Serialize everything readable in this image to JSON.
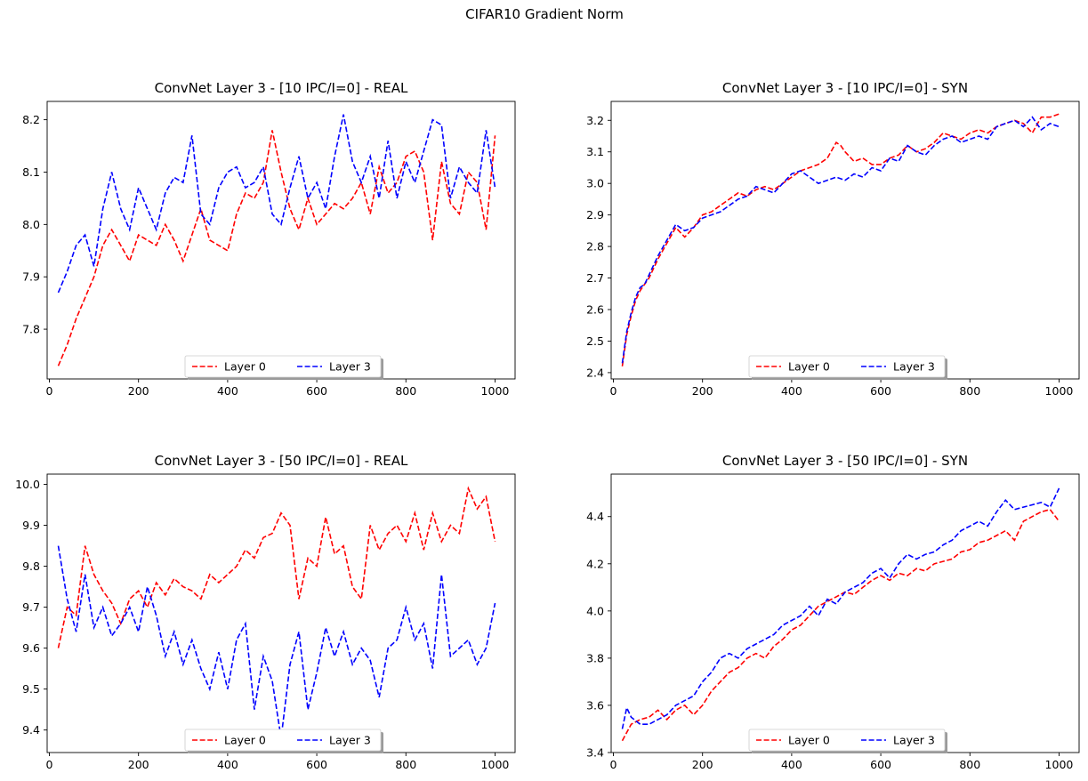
{
  "figure": {
    "suptitle": "CIFAR10 Gradient Norm"
  },
  "colors": {
    "layer0": "#ff0000",
    "layer3": "#0000ff"
  },
  "chart_data": [
    {
      "type": "line",
      "title": "ConvNet Layer 3 - [10 IPC/I=0] - REAL",
      "xlabel": "",
      "ylabel": "",
      "xlim": [
        -5,
        1045
      ],
      "ylim": [
        7.705,
        8.235
      ],
      "xticks": [
        0,
        200,
        400,
        600,
        800,
        1000
      ],
      "yticks": [
        7.8,
        7.9,
        8.0,
        8.1,
        8.2
      ],
      "ytick_labels": [
        "7.8",
        "7.9",
        "8.0",
        "8.1",
        "8.2"
      ],
      "legend": {
        "placement": "bottom-center",
        "entries": [
          "Layer 0",
          "Layer 3"
        ]
      },
      "series": [
        {
          "name": "Layer 0",
          "color": "#ff0000",
          "x": [
            20,
            40,
            60,
            80,
            100,
            120,
            140,
            160,
            180,
            200,
            220,
            240,
            260,
            280,
            300,
            320,
            340,
            360,
            380,
            400,
            420,
            440,
            460,
            480,
            500,
            520,
            540,
            560,
            580,
            600,
            620,
            640,
            660,
            680,
            700,
            720,
            740,
            760,
            780,
            800,
            820,
            840,
            860,
            880,
            900,
            920,
            940,
            960,
            980,
            1000
          ],
          "y": [
            7.73,
            7.77,
            7.82,
            7.86,
            7.9,
            7.96,
            7.99,
            7.96,
            7.93,
            7.98,
            7.97,
            7.96,
            8.0,
            7.97,
            7.93,
            7.98,
            8.03,
            7.97,
            7.96,
            7.95,
            8.02,
            8.06,
            8.05,
            8.08,
            8.18,
            8.1,
            8.03,
            7.99,
            8.05,
            8.0,
            8.02,
            8.04,
            8.03,
            8.05,
            8.08,
            8.02,
            8.11,
            8.06,
            8.08,
            8.13,
            8.14,
            8.1,
            7.97,
            8.12,
            8.04,
            8.02,
            8.1,
            8.08,
            7.99,
            8.17
          ]
        },
        {
          "name": "Layer 3",
          "color": "#0000ff",
          "x": [
            20,
            40,
            60,
            80,
            100,
            120,
            140,
            160,
            180,
            200,
            220,
            240,
            260,
            280,
            300,
            320,
            340,
            360,
            380,
            400,
            420,
            440,
            460,
            480,
            500,
            520,
            540,
            560,
            580,
            600,
            620,
            640,
            660,
            680,
            700,
            720,
            740,
            760,
            780,
            800,
            820,
            840,
            860,
            880,
            900,
            920,
            940,
            960,
            980,
            1000
          ],
          "y": [
            7.87,
            7.91,
            7.96,
            7.98,
            7.92,
            8.03,
            8.1,
            8.03,
            7.99,
            8.07,
            8.03,
            7.99,
            8.06,
            8.09,
            8.08,
            8.17,
            8.02,
            8.0,
            8.07,
            8.1,
            8.11,
            8.07,
            8.08,
            8.11,
            8.02,
            8.0,
            8.07,
            8.13,
            8.05,
            8.08,
            8.03,
            8.13,
            8.21,
            8.12,
            8.08,
            8.13,
            8.05,
            8.16,
            8.05,
            8.12,
            8.08,
            8.14,
            8.2,
            8.19,
            8.05,
            8.11,
            8.08,
            8.06,
            8.18,
            8.07
          ]
        }
      ]
    },
    {
      "type": "line",
      "title": "ConvNet Layer 3 - [10 IPC/I=0] - SYN",
      "xlabel": "",
      "ylabel": "",
      "xlim": [
        -5,
        1045
      ],
      "ylim": [
        2.38,
        3.26
      ],
      "xticks": [
        0,
        200,
        400,
        600,
        800,
        1000
      ],
      "yticks": [
        2.4,
        2.5,
        2.6,
        2.7,
        2.8,
        2.9,
        3.0,
        3.1,
        3.2
      ],
      "ytick_labels": [
        "2.4",
        "2.5",
        "2.6",
        "2.7",
        "2.8",
        "2.9",
        "3.0",
        "3.1",
        "3.2"
      ],
      "legend": {
        "placement": "bottom-center",
        "entries": [
          "Layer 0",
          "Layer 3"
        ]
      },
      "series": [
        {
          "name": "Layer 0",
          "color": "#ff0000",
          "x": [
            20,
            30,
            40,
            50,
            60,
            70,
            80,
            100,
            120,
            140,
            160,
            180,
            200,
            220,
            240,
            260,
            280,
            300,
            320,
            340,
            360,
            380,
            400,
            420,
            440,
            460,
            480,
            500,
            510,
            520,
            540,
            560,
            580,
            600,
            620,
            640,
            660,
            680,
            700,
            720,
            740,
            760,
            780,
            800,
            820,
            840,
            860,
            880,
            900,
            920,
            940,
            960,
            980,
            1000
          ],
          "y": [
            2.42,
            2.52,
            2.58,
            2.63,
            2.66,
            2.68,
            2.7,
            2.76,
            2.81,
            2.86,
            2.83,
            2.86,
            2.9,
            2.91,
            2.93,
            2.95,
            2.97,
            2.96,
            2.98,
            2.99,
            2.98,
            3.0,
            3.02,
            3.04,
            3.05,
            3.06,
            3.08,
            3.13,
            3.12,
            3.1,
            3.07,
            3.08,
            3.06,
            3.06,
            3.08,
            3.09,
            3.12,
            3.1,
            3.11,
            3.13,
            3.16,
            3.15,
            3.14,
            3.16,
            3.17,
            3.16,
            3.18,
            3.19,
            3.2,
            3.19,
            3.16,
            3.21,
            3.21,
            3.22
          ]
        },
        {
          "name": "Layer 3",
          "color": "#0000ff",
          "x": [
            20,
            30,
            40,
            50,
            60,
            70,
            80,
            100,
            120,
            140,
            160,
            180,
            200,
            220,
            240,
            260,
            280,
            300,
            320,
            340,
            360,
            380,
            400,
            420,
            440,
            460,
            480,
            500,
            520,
            540,
            560,
            580,
            600,
            620,
            640,
            660,
            680,
            700,
            720,
            740,
            760,
            780,
            800,
            820,
            840,
            860,
            880,
            900,
            920,
            940,
            960,
            980,
            1000
          ],
          "y": [
            2.43,
            2.53,
            2.59,
            2.64,
            2.67,
            2.68,
            2.71,
            2.77,
            2.82,
            2.87,
            2.85,
            2.86,
            2.89,
            2.9,
            2.91,
            2.93,
            2.95,
            2.96,
            2.99,
            2.98,
            2.97,
            3.0,
            3.03,
            3.04,
            3.02,
            3.0,
            3.01,
            3.02,
            3.01,
            3.03,
            3.02,
            3.05,
            3.04,
            3.08,
            3.07,
            3.12,
            3.1,
            3.09,
            3.12,
            3.14,
            3.15,
            3.13,
            3.14,
            3.15,
            3.14,
            3.18,
            3.19,
            3.2,
            3.18,
            3.21,
            3.17,
            3.19,
            3.18
          ]
        }
      ]
    },
    {
      "type": "line",
      "title": "ConvNet Layer 3 - [50 IPC/I=0] - REAL",
      "xlabel": "",
      "ylabel": "",
      "xlim": [
        -5,
        1045
      ],
      "ylim": [
        9.345,
        10.025
      ],
      "xticks": [
        0,
        200,
        400,
        600,
        800,
        1000
      ],
      "yticks": [
        9.4,
        9.5,
        9.6,
        9.7,
        9.8,
        9.9,
        10.0
      ],
      "ytick_labels": [
        "9.4",
        "9.5",
        "9.6",
        "9.7",
        "9.8",
        "9.9",
        "10.0"
      ],
      "legend": {
        "placement": "bottom-center",
        "entries": [
          "Layer 0",
          "Layer 3"
        ]
      },
      "series": [
        {
          "name": "Layer 0",
          "color": "#ff0000",
          "x": [
            20,
            40,
            60,
            80,
            100,
            120,
            140,
            160,
            180,
            200,
            220,
            240,
            260,
            280,
            300,
            320,
            340,
            360,
            380,
            400,
            420,
            440,
            460,
            480,
            500,
            520,
            540,
            560,
            580,
            600,
            620,
            640,
            660,
            680,
            700,
            720,
            740,
            760,
            780,
            800,
            820,
            840,
            860,
            880,
            900,
            920,
            940,
            960,
            980,
            1000
          ],
          "y": [
            9.6,
            9.7,
            9.68,
            9.85,
            9.78,
            9.74,
            9.71,
            9.66,
            9.72,
            9.74,
            9.7,
            9.76,
            9.73,
            9.77,
            9.75,
            9.74,
            9.72,
            9.78,
            9.76,
            9.78,
            9.8,
            9.84,
            9.82,
            9.87,
            9.88,
            9.93,
            9.9,
            9.72,
            9.82,
            9.8,
            9.92,
            9.83,
            9.85,
            9.75,
            9.72,
            9.9,
            9.84,
            9.88,
            9.9,
            9.86,
            9.93,
            9.84,
            9.93,
            9.86,
            9.9,
            9.88,
            9.99,
            9.94,
            9.97,
            9.86
          ]
        },
        {
          "name": "Layer 3",
          "color": "#0000ff",
          "x": [
            20,
            40,
            60,
            80,
            100,
            120,
            140,
            160,
            180,
            200,
            220,
            240,
            260,
            280,
            300,
            320,
            340,
            360,
            380,
            400,
            420,
            440,
            460,
            480,
            500,
            520,
            540,
            560,
            580,
            600,
            620,
            640,
            660,
            680,
            700,
            720,
            740,
            760,
            780,
            800,
            820,
            840,
            860,
            880,
            900,
            920,
            940,
            960,
            980,
            1000
          ],
          "y": [
            9.85,
            9.72,
            9.64,
            9.78,
            9.65,
            9.7,
            9.63,
            9.66,
            9.7,
            9.64,
            9.75,
            9.68,
            9.58,
            9.64,
            9.56,
            9.62,
            9.55,
            9.5,
            9.59,
            9.5,
            9.62,
            9.66,
            9.45,
            9.58,
            9.52,
            9.38,
            9.56,
            9.64,
            9.45,
            9.54,
            9.65,
            9.58,
            9.64,
            9.56,
            9.6,
            9.57,
            9.48,
            9.6,
            9.62,
            9.7,
            9.62,
            9.66,
            9.55,
            9.78,
            9.58,
            9.6,
            9.62,
            9.56,
            9.6,
            9.71
          ]
        }
      ]
    },
    {
      "type": "line",
      "title": "ConvNet Layer 3 - [50 IPC/I=0] - SYN",
      "xlabel": "",
      "ylabel": "",
      "xlim": [
        -5,
        1045
      ],
      "ylim": [
        3.4,
        4.58
      ],
      "xticks": [
        0,
        200,
        400,
        600,
        800,
        1000
      ],
      "yticks": [
        3.4,
        3.6,
        3.8,
        4.0,
        4.2,
        4.4
      ],
      "ytick_labels": [
        "3.4",
        "3.6",
        "3.8",
        "4.0",
        "4.2",
        "4.4"
      ],
      "legend": {
        "placement": "bottom-center",
        "entries": [
          "Layer 0",
          "Layer 3"
        ]
      },
      "series": [
        {
          "name": "Layer 0",
          "color": "#ff0000",
          "x": [
            20,
            40,
            60,
            80,
            100,
            120,
            140,
            160,
            180,
            200,
            220,
            240,
            260,
            280,
            300,
            320,
            340,
            360,
            380,
            400,
            420,
            440,
            460,
            480,
            500,
            520,
            540,
            560,
            580,
            600,
            620,
            640,
            660,
            680,
            700,
            720,
            740,
            760,
            780,
            800,
            820,
            840,
            860,
            880,
            900,
            920,
            940,
            960,
            980,
            1000
          ],
          "y": [
            3.45,
            3.52,
            3.54,
            3.55,
            3.58,
            3.54,
            3.58,
            3.6,
            3.56,
            3.6,
            3.66,
            3.7,
            3.74,
            3.76,
            3.8,
            3.82,
            3.8,
            3.85,
            3.88,
            3.92,
            3.94,
            3.98,
            4.02,
            4.04,
            4.06,
            4.08,
            4.07,
            4.1,
            4.13,
            4.15,
            4.13,
            4.16,
            4.15,
            4.18,
            4.17,
            4.2,
            4.21,
            4.22,
            4.25,
            4.26,
            4.29,
            4.3,
            4.32,
            4.34,
            4.3,
            4.38,
            4.4,
            4.42,
            4.43,
            4.38
          ]
        },
        {
          "name": "Layer 3",
          "color": "#0000ff",
          "x": [
            20,
            30,
            40,
            60,
            80,
            100,
            120,
            140,
            160,
            180,
            200,
            220,
            240,
            260,
            280,
            300,
            320,
            340,
            360,
            380,
            400,
            420,
            440,
            460,
            480,
            500,
            520,
            540,
            560,
            580,
            600,
            620,
            640,
            660,
            680,
            700,
            720,
            740,
            760,
            780,
            800,
            820,
            840,
            860,
            880,
            900,
            920,
            940,
            960,
            980,
            1000
          ],
          "y": [
            3.5,
            3.59,
            3.55,
            3.52,
            3.52,
            3.54,
            3.56,
            3.6,
            3.62,
            3.64,
            3.7,
            3.74,
            3.8,
            3.82,
            3.8,
            3.84,
            3.86,
            3.88,
            3.9,
            3.94,
            3.96,
            3.98,
            4.02,
            3.98,
            4.05,
            4.03,
            4.08,
            4.1,
            4.12,
            4.16,
            4.18,
            4.14,
            4.2,
            4.24,
            4.22,
            4.24,
            4.25,
            4.28,
            4.3,
            4.34,
            4.36,
            4.38,
            4.36,
            4.42,
            4.47,
            4.43,
            4.44,
            4.45,
            4.46,
            4.44,
            4.52
          ]
        }
      ]
    }
  ]
}
